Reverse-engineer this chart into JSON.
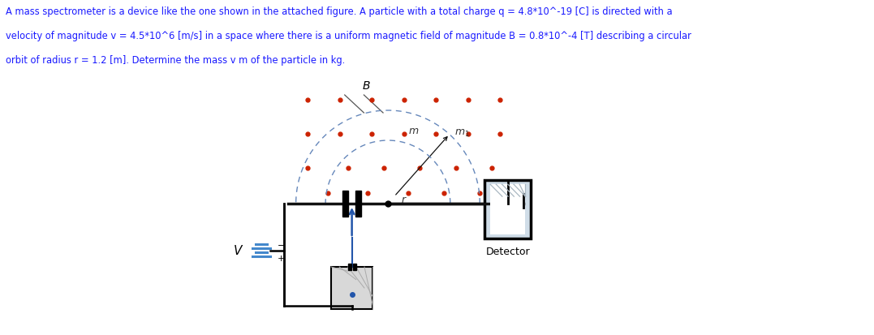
{
  "text_lines": [
    "A mass spectrometer is a device like the one shown in the attached figure. A particle with a total charge q = 4.8*10^-19 [C] is directed with a",
    "velocity of magnitude v = 4.5*10^6 [m/s] in a space where there is a uniform magnetic field of magnitude B = 0.8*10^-4 [T] describing a circular",
    "orbit of radius r = 1.2 [m]. Determine the mass v m of the particle in kg."
  ],
  "text_color": "#1a1aff",
  "bg_color": "#ffffff",
  "dot_color": "#cc2200",
  "arc_color": "#6688bb",
  "line_color": "#111111",
  "label_color": "#333333",
  "battery_blue": "#4488cc",
  "particle_blue": "#2255aa",
  "det_face": "#d0dde8",
  "src_face": "#d8d8d8"
}
